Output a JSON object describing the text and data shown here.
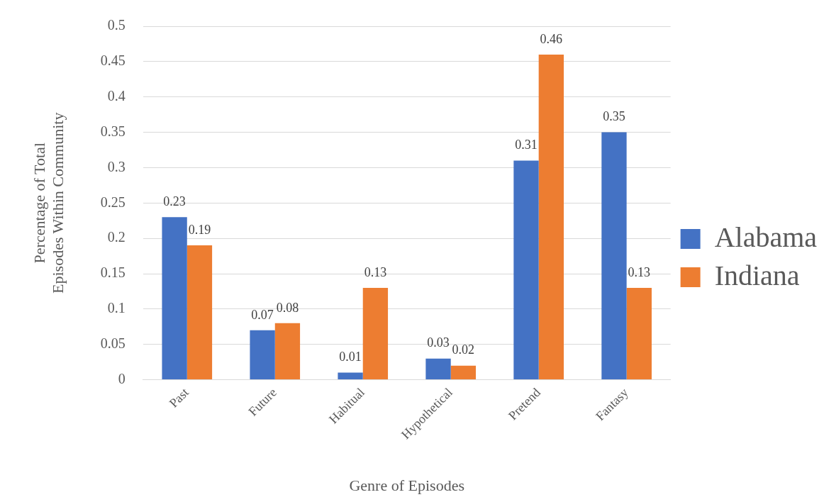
{
  "chart_data": {
    "type": "bar",
    "xlabel": "Genre of Episodes",
    "ylabel": "Percentage of Total Episodes Within Community",
    "categories": [
      "Past",
      "Future",
      "Habitual",
      "Hypothetical",
      "Pretend",
      "Fantasy"
    ],
    "series": [
      {
        "name": "Alabama",
        "color": "#4472c4",
        "values": [
          0.23,
          0.07,
          0.01,
          0.03,
          0.31,
          0.35
        ]
      },
      {
        "name": "Indiana",
        "color": "#ed7d31",
        "values": [
          0.19,
          0.08,
          0.13,
          0.02,
          0.46,
          0.13
        ]
      }
    ],
    "ylim": [
      0,
      0.5
    ],
    "yticks": [
      0,
      0.05,
      0.1,
      0.15,
      0.2,
      0.25,
      0.3,
      0.35,
      0.4,
      0.45,
      0.5
    ],
    "grid": "y",
    "legend": "right",
    "data_labels": true
  }
}
